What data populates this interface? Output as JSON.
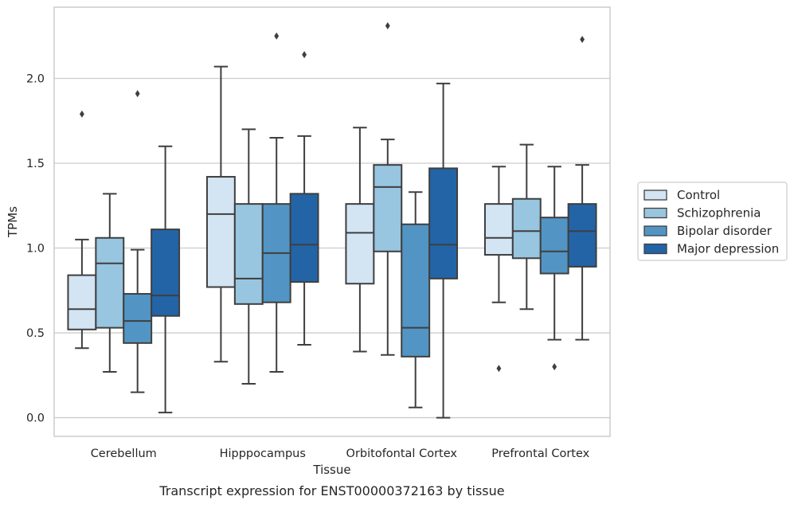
{
  "caption": "Transcript expression for ENST00000372163 by tissue",
  "chart_data": {
    "type": "box",
    "xlabel": "Tissue",
    "ylabel": "TPMs",
    "ylim": [
      -0.11,
      2.42
    ],
    "yticks": [
      "0.0",
      "0.5",
      "1.0",
      "1.5",
      "2.0"
    ],
    "grid": true,
    "legend_position": "right-outside",
    "categories": [
      "Cerebellum",
      "Hipppocampus",
      "Orbitofontal Cortex",
      "Prefrontal Cortex"
    ],
    "series": [
      {
        "name": "Control",
        "color": "#d3e4f3",
        "boxes": [
          {
            "whislo": 0.41,
            "q1": 0.52,
            "med": 0.64,
            "q3": 0.84,
            "whishi": 1.05,
            "fliers": [
              1.79
            ]
          },
          {
            "whislo": 0.33,
            "q1": 0.77,
            "med": 1.2,
            "q3": 1.42,
            "whishi": 2.07,
            "fliers": []
          },
          {
            "whislo": 0.39,
            "q1": 0.79,
            "med": 1.09,
            "q3": 1.26,
            "whishi": 1.71,
            "fliers": []
          },
          {
            "whislo": 0.68,
            "q1": 0.96,
            "med": 1.06,
            "q3": 1.26,
            "whishi": 1.48,
            "fliers": [
              0.29
            ]
          }
        ]
      },
      {
        "name": "Schizophrenia",
        "color": "#98c5df",
        "boxes": [
          {
            "whislo": 0.27,
            "q1": 0.53,
            "med": 0.91,
            "q3": 1.06,
            "whishi": 1.32,
            "fliers": []
          },
          {
            "whislo": 0.2,
            "q1": 0.67,
            "med": 0.82,
            "q3": 1.26,
            "whishi": 1.7,
            "fliers": []
          },
          {
            "whislo": 0.37,
            "q1": 0.98,
            "med": 1.36,
            "q3": 1.49,
            "whishi": 1.64,
            "fliers": [
              2.31
            ]
          },
          {
            "whislo": 0.64,
            "q1": 0.94,
            "med": 1.1,
            "q3": 1.29,
            "whishi": 1.61,
            "fliers": []
          }
        ]
      },
      {
        "name": "Bipolar disorder",
        "color": "#5295c4",
        "boxes": [
          {
            "whislo": 0.15,
            "q1": 0.44,
            "med": 0.57,
            "q3": 0.73,
            "whishi": 0.99,
            "fliers": [
              1.91
            ]
          },
          {
            "whislo": 0.27,
            "q1": 0.68,
            "med": 0.97,
            "q3": 1.26,
            "whishi": 1.65,
            "fliers": [
              2.25
            ]
          },
          {
            "whislo": 0.06,
            "q1": 0.36,
            "med": 0.53,
            "q3": 1.14,
            "whishi": 1.33,
            "fliers": []
          },
          {
            "whislo": 0.46,
            "q1": 0.85,
            "med": 0.98,
            "q3": 1.18,
            "whishi": 1.48,
            "fliers": [
              0.3
            ]
          }
        ]
      },
      {
        "name": "Major depression",
        "color": "#2364a7",
        "boxes": [
          {
            "whislo": 0.03,
            "q1": 0.6,
            "med": 0.72,
            "q3": 1.11,
            "whishi": 1.6,
            "fliers": []
          },
          {
            "whislo": 0.43,
            "q1": 0.8,
            "med": 1.02,
            "q3": 1.32,
            "whishi": 1.66,
            "fliers": [
              2.14
            ]
          },
          {
            "whislo": 0.0,
            "q1": 0.82,
            "med": 1.02,
            "q3": 1.47,
            "whishi": 1.97,
            "fliers": []
          },
          {
            "whislo": 0.46,
            "q1": 0.89,
            "med": 1.1,
            "q3": 1.26,
            "whishi": 1.49,
            "fliers": [
              2.23
            ]
          }
        ]
      }
    ]
  }
}
